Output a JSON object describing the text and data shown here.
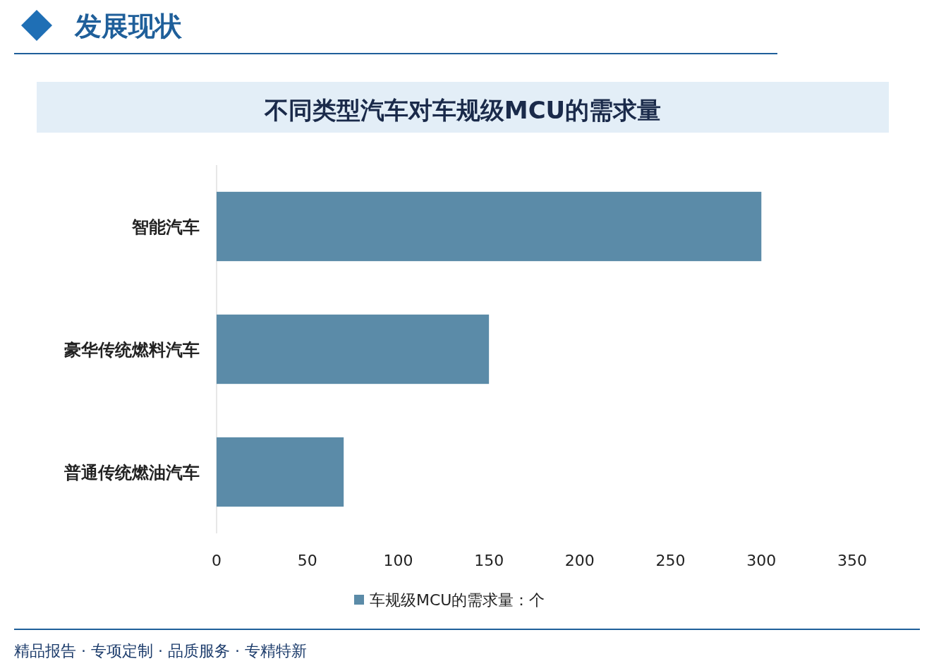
{
  "chart_data": {
    "type": "bar",
    "orientation": "horizontal",
    "title": "不同类型汽车对车规级MCU的需求量",
    "categories": [
      "智能汽车",
      "豪华传统燃料汽车",
      "普通传统燃油汽车"
    ],
    "series": [
      {
        "name": "车规级MCU的需求量：个",
        "color": "#5b8ba8",
        "values": [
          300,
          150,
          70
        ]
      }
    ],
    "xlim": [
      0,
      350
    ],
    "xticks": [
      0,
      50,
      100,
      150,
      200,
      250,
      300,
      350
    ],
    "grid": false,
    "legend": "bottom",
    "annotations": [
      "发展现状",
      "精品报告 · 专项定制 · 品质服务 · 专精特新"
    ]
  }
}
